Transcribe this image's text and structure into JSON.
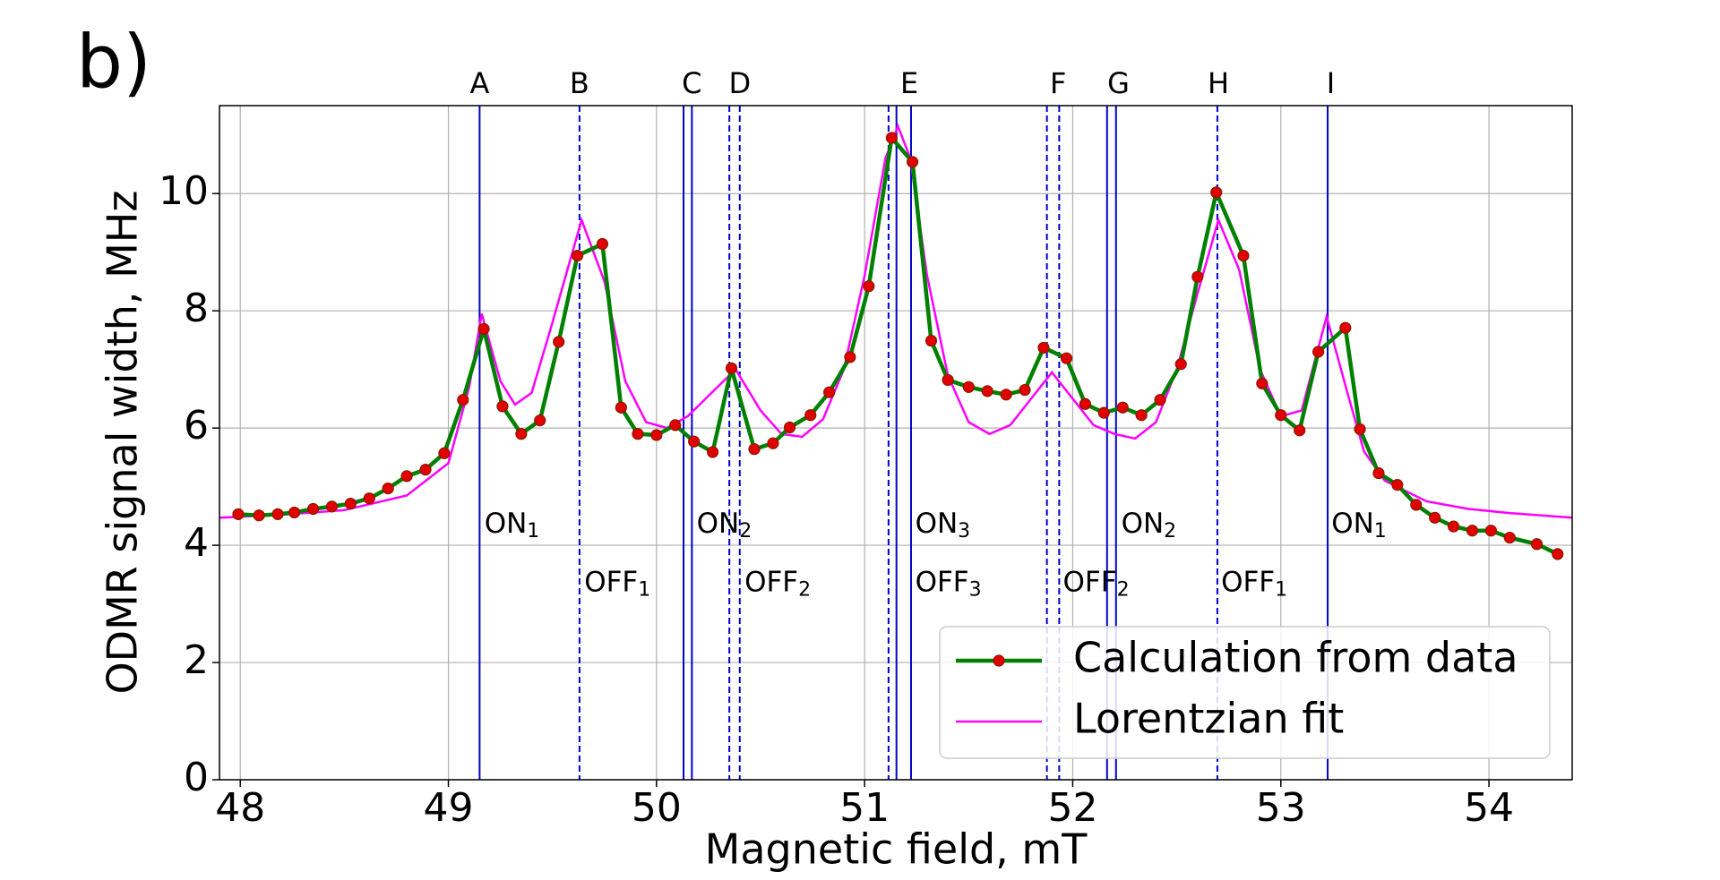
{
  "chart_data": {
    "type": "line",
    "panel_label": "b)",
    "x_label": "Magnetic field, mT",
    "y_label": "ODMR signal width, MHz",
    "xlim": [
      47.9,
      54.4
    ],
    "ylim": [
      0,
      11.5
    ],
    "xticks": [
      48,
      49,
      50,
      51,
      52,
      53,
      54
    ],
    "yticks": [
      0,
      2,
      4,
      6,
      8,
      10
    ],
    "grid": true,
    "legend": "lower right",
    "series": [
      {
        "name": "Calculation from data",
        "color": "#008000",
        "marker_color": "#e00000",
        "x": [
          47.99,
          48.09,
          48.18,
          48.26,
          48.35,
          48.44,
          48.53,
          48.62,
          48.71,
          48.8,
          48.89,
          48.98,
          49.07,
          49.17,
          49.26,
          49.35,
          49.44,
          49.53,
          49.62,
          49.74,
          49.83,
          49.91,
          50.0,
          50.09,
          50.18,
          50.27,
          50.36,
          50.47,
          50.56,
          50.64,
          50.74,
          50.83,
          50.93,
          51.02,
          51.13,
          51.23,
          51.32,
          51.4,
          51.5,
          51.59,
          51.68,
          51.77,
          51.86,
          51.97,
          52.06,
          52.15,
          52.24,
          52.33,
          52.42,
          52.52,
          52.6,
          52.69,
          52.82,
          52.91,
          53.0,
          53.09,
          53.18,
          53.31,
          53.38,
          53.47,
          53.56,
          53.65,
          53.74,
          53.83,
          53.92,
          54.01,
          54.1,
          54.23,
          54.33
        ],
        "values": [
          4.53,
          4.51,
          4.53,
          4.56,
          4.62,
          4.66,
          4.71,
          4.8,
          4.97,
          5.18,
          5.29,
          5.57,
          6.48,
          7.69,
          6.37,
          5.9,
          6.13,
          7.47,
          8.94,
          9.14,
          6.35,
          5.9,
          5.88,
          6.05,
          5.77,
          5.59,
          7.02,
          5.64,
          5.74,
          6.01,
          6.22,
          6.61,
          7.21,
          8.42,
          10.95,
          10.54,
          7.49,
          6.82,
          6.7,
          6.63,
          6.57,
          6.65,
          7.37,
          7.19,
          6.41,
          6.26,
          6.35,
          6.22,
          6.48,
          7.09,
          8.58,
          10.02,
          8.94,
          6.76,
          6.22,
          5.96,
          7.3,
          7.71,
          5.98,
          5.23,
          5.03,
          4.69,
          4.47,
          4.32,
          4.25,
          4.25,
          4.13,
          4.02,
          3.85
        ]
      },
      {
        "name": "Lorentzian fit",
        "color": "#ff00ff",
        "x": [
          47.9,
          48.2,
          48.5,
          48.8,
          49.0,
          49.1,
          49.16,
          49.25,
          49.32,
          49.4,
          49.5,
          49.64,
          49.75,
          49.85,
          49.95,
          50.05,
          50.15,
          50.25,
          50.38,
          50.5,
          50.6,
          50.7,
          50.8,
          50.9,
          51.0,
          51.1,
          51.16,
          51.22,
          51.3,
          51.4,
          51.5,
          51.6,
          51.7,
          51.8,
          51.9,
          52.0,
          52.1,
          52.2,
          52.3,
          52.4,
          52.5,
          52.6,
          52.7,
          52.8,
          52.9,
          53.0,
          53.1,
          53.22,
          53.32,
          53.4,
          53.5,
          53.7,
          53.9,
          54.1,
          54.4
        ],
        "values": [
          4.47,
          4.52,
          4.6,
          4.85,
          5.4,
          6.7,
          7.95,
          6.8,
          6.4,
          6.6,
          7.8,
          9.55,
          8.5,
          6.8,
          6.1,
          6.0,
          6.2,
          6.55,
          7.0,
          6.3,
          5.9,
          5.85,
          6.15,
          7.0,
          8.6,
          10.6,
          11.15,
          10.6,
          8.6,
          6.9,
          6.1,
          5.9,
          6.05,
          6.5,
          6.95,
          6.5,
          6.05,
          5.9,
          5.82,
          6.1,
          7.0,
          8.3,
          9.55,
          8.7,
          7.0,
          6.2,
          6.3,
          7.9,
          6.6,
          5.6,
          5.1,
          4.75,
          4.62,
          4.55,
          4.47
        ]
      }
    ],
    "vline_color": "#0000cc",
    "vlines": [
      {
        "x": 49.15,
        "style": "solid"
      },
      {
        "x": 49.63,
        "style": "dashed"
      },
      {
        "x": 50.13,
        "style": "solid"
      },
      {
        "x": 50.17,
        "style": "solid"
      },
      {
        "x": 50.35,
        "style": "dashed"
      },
      {
        "x": 50.4,
        "style": "dashed"
      },
      {
        "x": 51.115,
        "style": "dashed"
      },
      {
        "x": 51.153,
        "style": "solid"
      },
      {
        "x": 51.223,
        "style": "solid"
      },
      {
        "x": 51.876,
        "style": "dashed"
      },
      {
        "x": 51.935,
        "style": "dashed"
      },
      {
        "x": 52.165,
        "style": "solid"
      },
      {
        "x": 52.208,
        "style": "solid"
      },
      {
        "x": 52.695,
        "style": "dashed"
      },
      {
        "x": 53.225,
        "style": "solid"
      }
    ],
    "line_labels": [
      {
        "text": "A",
        "x": 49.15
      },
      {
        "text": "B",
        "x": 49.63
      },
      {
        "text": "C",
        "x": 50.17
      },
      {
        "text": "D",
        "x": 50.4
      },
      {
        "text": "E",
        "x": 51.215
      },
      {
        "text": "F",
        "x": 51.93
      },
      {
        "text": "G",
        "x": 52.22
      },
      {
        "text": "H",
        "x": 52.7
      },
      {
        "text": "I",
        "x": 53.24
      }
    ],
    "annotations": [
      {
        "text": "ON",
        "sub": "1",
        "x": 49.16,
        "y": 4.35
      },
      {
        "text": "OFF",
        "sub": "1",
        "x": 49.64,
        "y": 3.35
      },
      {
        "text": "ON",
        "sub": "2",
        "x": 50.18,
        "y": 4.35
      },
      {
        "text": "OFF",
        "sub": "2",
        "x": 50.41,
        "y": 3.35
      },
      {
        "text": "ON",
        "sub": "3",
        "x": 51.23,
        "y": 4.35
      },
      {
        "text": "OFF",
        "sub": "3",
        "x": 51.23,
        "y": 3.35
      },
      {
        "text": "OFF",
        "sub": "2",
        "x": 51.94,
        "y": 3.35
      },
      {
        "text": "ON",
        "sub": "2",
        "x": 52.22,
        "y": 4.35
      },
      {
        "text": "OFF",
        "sub": "1",
        "x": 52.7,
        "y": 3.35
      },
      {
        "text": "ON",
        "sub": "1",
        "x": 53.23,
        "y": 4.35
      }
    ]
  }
}
